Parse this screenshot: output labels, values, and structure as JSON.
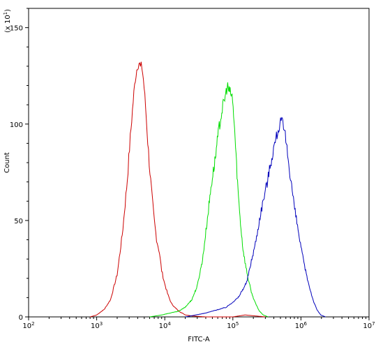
{
  "chart_data": {
    "type": "line",
    "title": "",
    "xlabel": "FITC-A",
    "ylabel": "Count",
    "y_multiplier": "(x 10",
    "y_multiplier_exp": "1",
    "y_multiplier_close": ")",
    "x_scale": "log",
    "xlim": [
      100,
      10000000
    ],
    "ylim": [
      0,
      160
    ],
    "x_ticks": [
      {
        "value": 100,
        "base": "10",
        "exp": "2"
      },
      {
        "value": 1000,
        "base": "10",
        "exp": "3"
      },
      {
        "value": 10000,
        "base": "10",
        "exp": "4"
      },
      {
        "value": 100000,
        "base": "10",
        "exp": "5"
      },
      {
        "value": 1000000,
        "base": "10",
        "exp": "6"
      },
      {
        "value": 10000000,
        "base": "10",
        "exp": "7"
      }
    ],
    "y_ticks": [
      0,
      50,
      100,
      150
    ],
    "grid": false,
    "series": [
      {
        "color": "#cc0000",
        "x": [
          800,
          1000,
          1300,
          1600,
          2000,
          2400,
          2800,
          3100,
          3400,
          3700,
          4000,
          4200,
          4400,
          4600,
          4800,
          5000,
          5300,
          5600,
          6000,
          6500,
          7000,
          7600,
          8300,
          9000,
          10000,
          11000,
          12500,
          14000,
          16000,
          18000,
          20000,
          25000,
          40000,
          100000,
          150000,
          300000
        ],
        "y": [
          0,
          1,
          4,
          9,
          22,
          44,
          70,
          92,
          110,
          124,
          131,
          132,
          129,
          130,
          125,
          118,
          106,
          92,
          77,
          62,
          50,
          40,
          34,
          24,
          17,
          12,
          7,
          5,
          3,
          2,
          1,
          0.5,
          0,
          0,
          1,
          0
        ]
      },
      {
        "color": "#00dd00",
        "x": [
          6000,
          9000,
          12000,
          16000,
          20000,
          25000,
          30000,
          36000,
          42000,
          48000,
          55000,
          62000,
          70000,
          77000,
          83000,
          88000,
          93000,
          98000,
          105000,
          112000,
          120000,
          130000,
          140000,
          155000,
          170000,
          190000,
          215000,
          245000,
          280000,
          330000
        ],
        "y": [
          0,
          1,
          2,
          3,
          5,
          9,
          16,
          30,
          50,
          68,
          82,
          97,
          108,
          114,
          120,
          117,
          116,
          114,
          100,
          82,
          64,
          48,
          36,
          26,
          19,
          12,
          7,
          3,
          1,
          0
        ]
      },
      {
        "color": "#0000bb",
        "x": [
          20000,
          40000,
          80000,
          120000,
          160000,
          190000,
          220000,
          250000,
          285000,
          320000,
          360000,
          400000,
          440000,
          480000,
          520000,
          560000,
          600000,
          660000,
          720000,
          800000,
          900000,
          1000000,
          1150000,
          1300000,
          1500000,
          1700000,
          1950000,
          2300000
        ],
        "y": [
          0,
          2,
          5,
          10,
          18,
          30,
          40,
          52,
          62,
          70,
          80,
          88,
          94,
          99,
          102,
          97,
          92,
          80,
          70,
          57,
          46,
          36,
          25,
          17,
          9,
          4,
          1,
          0
        ]
      }
    ]
  }
}
